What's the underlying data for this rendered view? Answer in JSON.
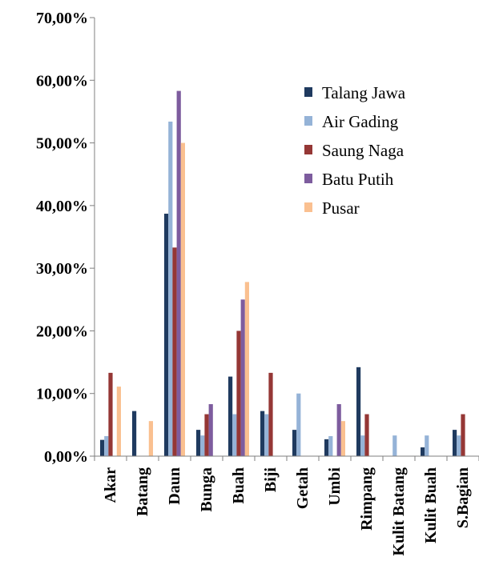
{
  "chart_data": {
    "type": "bar",
    "categories": [
      "Akar",
      "Batang",
      "Daun",
      "Bunga",
      "Buah",
      "Biji",
      "Getah",
      "Umbi",
      "Rimpang",
      "Kulit Batang",
      "Kulit Buah",
      "S.Bagian"
    ],
    "series": [
      {
        "name": "Talang Jawa",
        "color": "#1f3a5f",
        "values": [
          2.6,
          7.2,
          38.7,
          4.2,
          12.7,
          7.2,
          4.2,
          2.7,
          14.2,
          0,
          1.4,
          4.2
        ]
      },
      {
        "name": "Air Gading",
        "color": "#95b3d7",
        "values": [
          3.2,
          0,
          53.4,
          3.3,
          6.7,
          6.7,
          10.0,
          3.2,
          3.3,
          3.3,
          3.3,
          3.3
        ]
      },
      {
        "name": "Saung Naga",
        "color": "#953735",
        "values": [
          13.3,
          0,
          33.3,
          6.7,
          20.0,
          13.3,
          0,
          0,
          6.7,
          0,
          0,
          6.7
        ]
      },
      {
        "name": "Batu Putih",
        "color": "#7d5c9e",
        "values": [
          0,
          0,
          58.3,
          8.3,
          25.0,
          0,
          0,
          8.3,
          0,
          0,
          0,
          0
        ]
      },
      {
        "name": "Pusar",
        "color": "#fac090",
        "values": [
          11.1,
          5.6,
          50.0,
          0,
          27.8,
          0,
          0,
          5.6,
          0,
          0,
          0,
          0
        ]
      }
    ],
    "y_ticks": [
      "0,00%",
      "10,00%",
      "20,00%",
      "30,00%",
      "40,00%",
      "50,00%",
      "60,00%",
      "70,00%"
    ],
    "ylim": [
      0,
      70
    ],
    "grid": false,
    "legend_position": "top-right",
    "title": "",
    "xlabel": "",
    "ylabel": ""
  }
}
